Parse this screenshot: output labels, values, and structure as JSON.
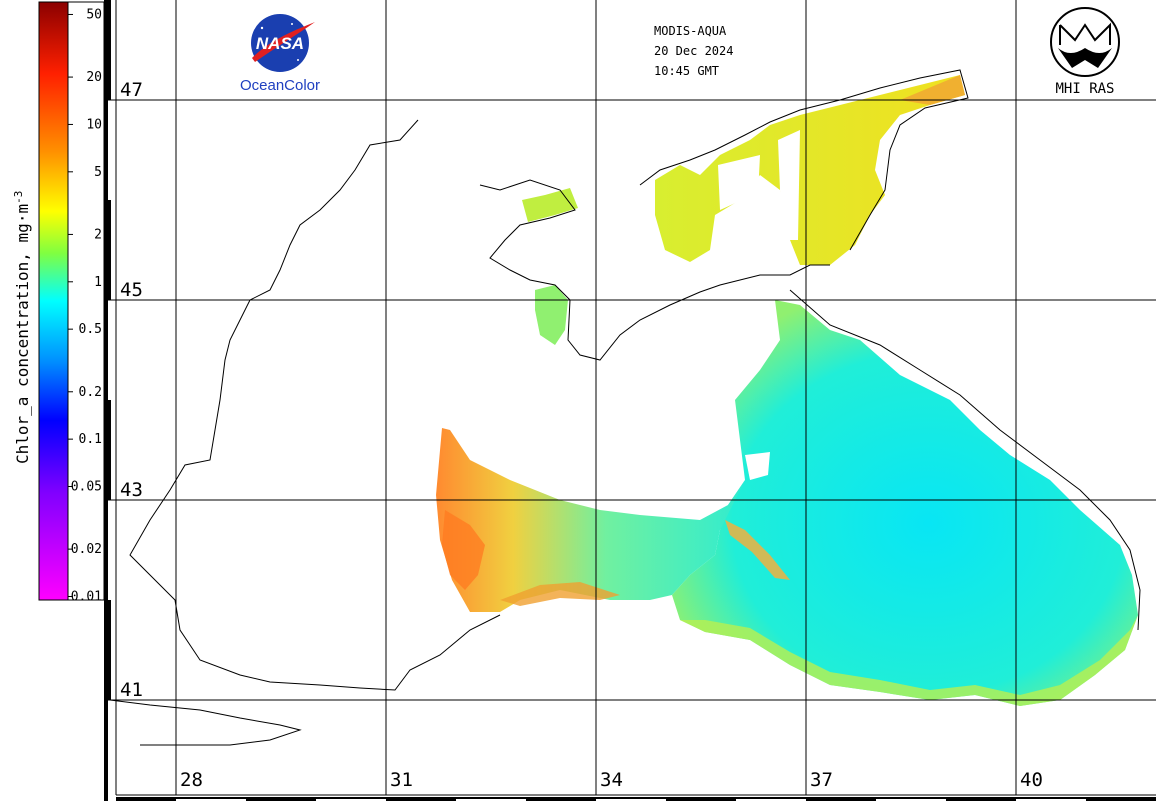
{
  "sensor": "MODIS-AQUA",
  "date": "20 Dec 2024",
  "time": "10:45 GMT",
  "logos": {
    "nasa": {
      "text": "NASA",
      "sub": "OceanColor"
    },
    "institute": {
      "text": "MHI RAS"
    }
  },
  "colorbar": {
    "title": "Chlor_a concentration, mg·m",
    "title_exp": "-3",
    "ticks": [
      "50",
      "20",
      "10",
      "5",
      "2",
      "1",
      "0.5",
      "0.2",
      "0.1",
      "0.05",
      "0.02",
      "0.01"
    ],
    "colors": [
      "#a00000",
      "#ff2000",
      "#ff8000",
      "#ffff00",
      "#40ff80",
      "#00ffff",
      "#0080ff",
      "#0000ff",
      "#8000ff",
      "#ff00ff"
    ]
  },
  "grid": {
    "lat_labels": [
      "47",
      "45",
      "43",
      "41"
    ],
    "lon_labels": [
      "28",
      "31",
      "34",
      "37",
      "40"
    ]
  },
  "colors": {
    "background": "#ffffff",
    "coast": "#000000",
    "water_low": "#00e8f0",
    "water_mid": "#60f0a0",
    "water_high": "#e8f040",
    "water_peak": "#ff8030"
  }
}
